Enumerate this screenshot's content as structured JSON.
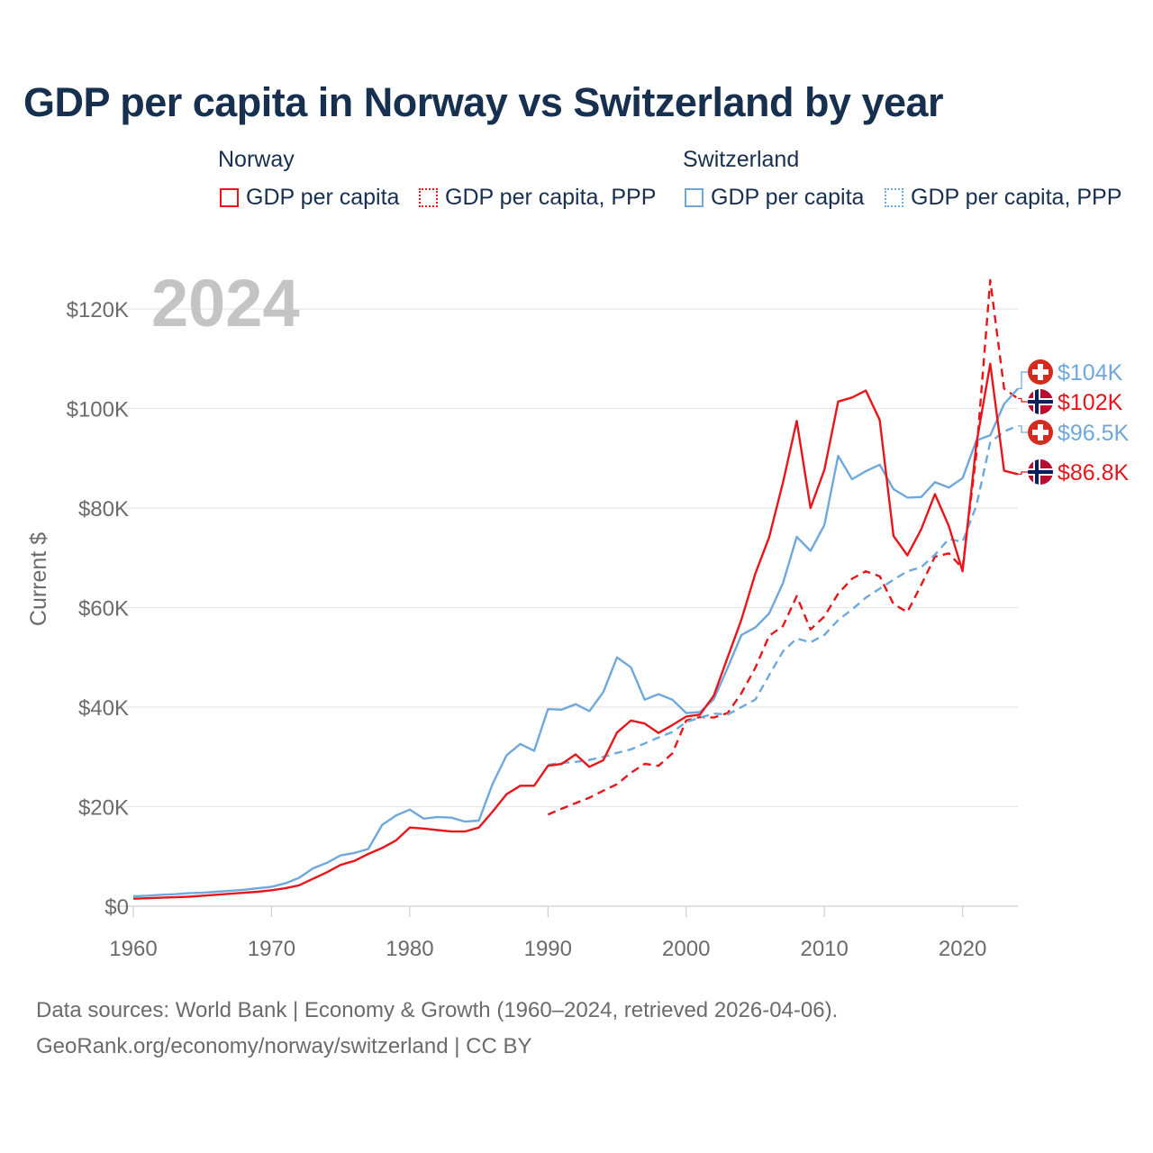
{
  "title": "GDP per capita in Norway vs Switzerland by year",
  "legend": {
    "groups": [
      {
        "country": "Norway",
        "items": [
          {
            "label": "GDP per capita",
            "style": "solid",
            "color": "#e8151b"
          },
          {
            "label": "GDP per capita, PPP",
            "style": "dotted",
            "color": "#e8151b"
          }
        ]
      },
      {
        "country": "Switzerland",
        "items": [
          {
            "label": "GDP per capita",
            "style": "solid",
            "color": "#6fa8dc"
          },
          {
            "label": "GDP per capita, PPP",
            "style": "dotted",
            "color": "#6fa8dc"
          }
        ]
      }
    ]
  },
  "source": {
    "line1": "Data sources: World Bank | Economy & Growth (1960–2024, retrieved 2026-04-06).",
    "line2": "GeoRank.org/economy/norway/switzerland | CC BY"
  },
  "chart_data": {
    "type": "line",
    "year_label": "2024",
    "ylabel": "Current $",
    "xlim": [
      1960,
      2024
    ],
    "ylim": [
      0,
      120000
    ],
    "xticks": [
      1960,
      1970,
      1980,
      1990,
      2000,
      2010,
      2020
    ],
    "xtick_labels": [
      "1960",
      "1970",
      "1980",
      "1990",
      "2000",
      "2010",
      "2020"
    ],
    "yticks": [
      0,
      20000,
      40000,
      60000,
      80000,
      100000,
      120000
    ],
    "ytick_labels": [
      "$0",
      "$20K",
      "$40K",
      "$60K",
      "$80K",
      "$100K",
      "$120K"
    ],
    "series": [
      {
        "name": "Norway GDP per capita",
        "color": "#e8151b",
        "dash": "solid",
        "x": [
          1960,
          1961,
          1962,
          1963,
          1964,
          1965,
          1966,
          1967,
          1968,
          1969,
          1970,
          1971,
          1972,
          1973,
          1974,
          1975,
          1976,
          1977,
          1978,
          1979,
          1980,
          1981,
          1982,
          1983,
          1984,
          1985,
          1986,
          1987,
          1988,
          1989,
          1990,
          1991,
          1992,
          1993,
          1994,
          1995,
          1996,
          1997,
          1998,
          1999,
          2000,
          2001,
          2002,
          2003,
          2004,
          2005,
          2006,
          2007,
          2008,
          2009,
          2010,
          2011,
          2012,
          2013,
          2014,
          2015,
          2016,
          2017,
          2018,
          2019,
          2020,
          2021,
          2022,
          2023,
          2024
        ],
        "y": [
          1500,
          1600,
          1700,
          1800,
          1900,
          2100,
          2300,
          2500,
          2700,
          2900,
          3200,
          3600,
          4200,
          5500,
          6800,
          8300,
          9100,
          10500,
          11700,
          13200,
          15800,
          15600,
          15300,
          15000,
          15000,
          15800,
          19000,
          22500,
          24200,
          24200,
          28200,
          28600,
          30500,
          28000,
          29300,
          34900,
          37300,
          36700,
          34800,
          36400,
          38100,
          38500,
          42300,
          50000,
          57600,
          66800,
          74100,
          85100,
          97500,
          80000,
          87700,
          101400,
          102200,
          103600,
          97700,
          74400,
          70500,
          75700,
          82800,
          76400,
          67300,
          93000,
          109000,
          87500,
          86800
        ],
        "end_label": "$86.8K",
        "flag": "norway"
      },
      {
        "name": "Norway GDP per capita, PPP",
        "color": "#e8151b",
        "dash": "dashed",
        "x": [
          1990,
          1991,
          1992,
          1993,
          1994,
          1995,
          1996,
          1997,
          1998,
          1999,
          2000,
          2001,
          2002,
          2003,
          2004,
          2005,
          2006,
          2007,
          2008,
          2009,
          2010,
          2011,
          2012,
          2013,
          2014,
          2015,
          2016,
          2017,
          2018,
          2019,
          2020,
          2021,
          2022,
          2023,
          2024
        ],
        "y": [
          18400,
          19600,
          20700,
          21800,
          23200,
          24500,
          26800,
          28600,
          28200,
          30700,
          37300,
          38000,
          37900,
          38800,
          42800,
          47900,
          54300,
          56300,
          62300,
          55600,
          58200,
          62800,
          65800,
          67300,
          66300,
          60700,
          59100,
          64500,
          70200,
          70900,
          67900,
          91000,
          125800,
          104000,
          102000
        ],
        "end_label": "$102K",
        "flag": "norway"
      },
      {
        "name": "Switzerland GDP per capita",
        "color": "#6fa8dc",
        "dash": "solid",
        "x": [
          1960,
          1961,
          1962,
          1963,
          1964,
          1965,
          1966,
          1967,
          1968,
          1969,
          1970,
          1971,
          1972,
          1973,
          1974,
          1975,
          1976,
          1977,
          1978,
          1979,
          1980,
          1981,
          1982,
          1983,
          1984,
          1985,
          1986,
          1987,
          1988,
          1989,
          1990,
          1991,
          1992,
          1993,
          1994,
          1995,
          1996,
          1997,
          1998,
          1999,
          2000,
          2001,
          2002,
          2003,
          2004,
          2005,
          2006,
          2007,
          2008,
          2009,
          2010,
          2011,
          2012,
          2013,
          2014,
          2015,
          2016,
          2017,
          2018,
          2019,
          2020,
          2021,
          2022,
          2023,
          2024
        ],
        "y": [
          2000,
          2100,
          2300,
          2400,
          2600,
          2700,
          2900,
          3100,
          3300,
          3600,
          3900,
          4600,
          5700,
          7600,
          8700,
          10200,
          10700,
          11500,
          16300,
          18200,
          19400,
          17600,
          17900,
          17800,
          17000,
          17200,
          24600,
          30300,
          32600,
          31200,
          39600,
          39500,
          40600,
          39200,
          43000,
          50000,
          48000,
          41500,
          42600,
          41500,
          38800,
          39000,
          41600,
          47900,
          54500,
          56000,
          58800,
          64900,
          74200,
          71400,
          76600,
          90500,
          85800,
          87400,
          88700,
          83800,
          82100,
          82200,
          85200,
          84100,
          86000,
          93600,
          94600,
          100900,
          104000
        ],
        "end_label": "$104K",
        "flag": "switzerland"
      },
      {
        "name": "Switzerland GDP per capita, PPP",
        "color": "#6fa8dc",
        "dash": "dashed",
        "x": [
          1990,
          1991,
          1992,
          1993,
          1994,
          1995,
          1996,
          1997,
          1998,
          1999,
          2000,
          2001,
          2002,
          2003,
          2004,
          2005,
          2006,
          2007,
          2008,
          2009,
          2010,
          2011,
          2012,
          2013,
          2014,
          2015,
          2016,
          2017,
          2018,
          2019,
          2020,
          2021,
          2022,
          2023,
          2024
        ],
        "y": [
          28400,
          28800,
          29000,
          29400,
          30000,
          30800,
          31500,
          32700,
          33900,
          35000,
          37000,
          37900,
          38700,
          38500,
          40000,
          41500,
          46400,
          51200,
          53800,
          53000,
          54500,
          57500,
          59600,
          62000,
          63800,
          65600,
          67300,
          68100,
          70600,
          73800,
          73200,
          80500,
          93200,
          95400,
          96500
        ],
        "end_label": "$96.5K",
        "flag": "switzerland"
      }
    ]
  }
}
